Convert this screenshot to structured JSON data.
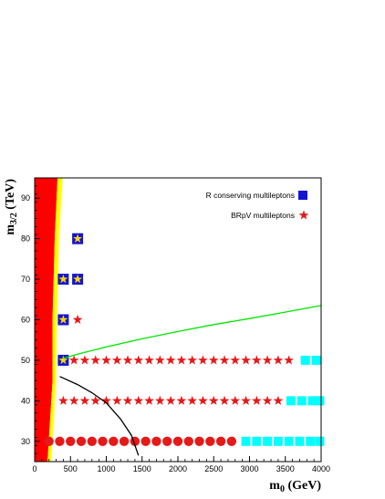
{
  "chart_data": {
    "type": "scatter",
    "xlim": [
      0,
      4000
    ],
    "ylim": [
      25,
      95
    ],
    "x_ticks": [
      0,
      500,
      1000,
      1500,
      2000,
      2500,
      3000,
      3500,
      4000
    ],
    "y_ticks": [
      30,
      40,
      50,
      60,
      70,
      80,
      90
    ],
    "x_tick_labels": [
      "0",
      "500",
      "1000",
      "1500",
      "2000",
      "2500",
      "3000",
      "3500",
      "4000"
    ],
    "y_tick_labels": [
      "30",
      "40",
      "50",
      "60",
      "70",
      "80",
      "90"
    ],
    "xlabel": {
      "main": "m",
      "sub": "0",
      "unit": " (GeV)"
    },
    "ylabel": {
      "main": "m",
      "sub": "3/2",
      "unit": " (TeV)"
    },
    "legend": {
      "placement": "top-right",
      "entries": [
        {
          "label": "R conserving multileptons",
          "marker": "square",
          "color": "#1414d2"
        },
        {
          "label": "BRpV multileptons",
          "marker": "star",
          "color": "#e61919"
        }
      ]
    },
    "colors": {
      "excluded_region": "#ff0000",
      "boundary_band": "#ffff00",
      "green_curve": "#00e600",
      "black_curve": "#000000",
      "red_marker": "#e61919",
      "cyan_marker": "#00ffff",
      "blue_square": "#1414d2",
      "yellow_star": "#ffd700"
    },
    "red_region": [
      [
        0,
        25
      ],
      [
        180,
        25
      ],
      [
        250,
        45
      ],
      [
        250,
        60
      ],
      [
        280,
        80
      ],
      [
        320,
        95
      ],
      [
        0,
        95
      ]
    ],
    "yellow_band": [
      [
        180,
        25
      ],
      [
        230,
        25
      ],
      [
        300,
        45
      ],
      [
        310,
        60
      ],
      [
        340,
        80
      ],
      [
        390,
        95
      ],
      [
        320,
        95
      ],
      [
        280,
        80
      ],
      [
        250,
        60
      ],
      [
        250,
        45
      ]
    ],
    "green_curve": [
      [
        400,
        50.5
      ],
      [
        600,
        51.5
      ],
      [
        1000,
        53.3
      ],
      [
        1500,
        55.3
      ],
      [
        2000,
        57.1
      ],
      [
        2500,
        58.8
      ],
      [
        3000,
        60.3
      ],
      [
        3500,
        61.9
      ],
      [
        4000,
        63.5
      ]
    ],
    "black_curve": [
      [
        350,
        46
      ],
      [
        600,
        44
      ],
      [
        800,
        42
      ],
      [
        1000,
        39.5
      ],
      [
        1200,
        35.5
      ],
      [
        1350,
        31.5
      ],
      [
        1450,
        26.5
      ]
    ],
    "series": [
      {
        "marker": "circle",
        "color": "#e61919",
        "points": [
          [
            200,
            30
          ],
          [
            350,
            30
          ],
          [
            500,
            30
          ],
          [
            650,
            30
          ],
          [
            800,
            30
          ],
          [
            950,
            30
          ],
          [
            1100,
            30
          ],
          [
            1250,
            30
          ],
          [
            1400,
            30
          ],
          [
            1550,
            30
          ],
          [
            1700,
            30
          ],
          [
            1850,
            30
          ],
          [
            2000,
            30
          ],
          [
            2150,
            30
          ],
          [
            2300,
            30
          ],
          [
            2450,
            30
          ],
          [
            2600,
            30
          ],
          [
            2750,
            30
          ]
        ]
      },
      {
        "marker": "square",
        "color": "#00ffff",
        "points": [
          [
            2950,
            30
          ],
          [
            3100,
            30
          ],
          [
            3250,
            30
          ],
          [
            3400,
            30
          ],
          [
            3550,
            30
          ],
          [
            3700,
            30
          ],
          [
            3850,
            30
          ],
          [
            3980,
            30
          ],
          [
            3580,
            40
          ],
          [
            3730,
            40
          ],
          [
            3880,
            40
          ],
          [
            3980,
            40
          ],
          [
            3780,
            50
          ],
          [
            3930,
            50
          ]
        ]
      },
      {
        "marker": "star",
        "color": "#e61919",
        "points": [
          [
            400,
            40
          ],
          [
            550,
            40
          ],
          [
            700,
            40
          ],
          [
            850,
            40
          ],
          [
            1000,
            40
          ],
          [
            1150,
            40
          ],
          [
            1300,
            40
          ],
          [
            1450,
            40
          ],
          [
            1600,
            40
          ],
          [
            1750,
            40
          ],
          [
            1900,
            40
          ],
          [
            2050,
            40
          ],
          [
            2200,
            40
          ],
          [
            2350,
            40
          ],
          [
            2500,
            40
          ],
          [
            2650,
            40
          ],
          [
            2800,
            40
          ],
          [
            2950,
            40
          ],
          [
            3100,
            40
          ],
          [
            3250,
            40
          ],
          [
            3400,
            40
          ],
          [
            550,
            50
          ],
          [
            700,
            50
          ],
          [
            850,
            50
          ],
          [
            1000,
            50
          ],
          [
            1150,
            50
          ],
          [
            1300,
            50
          ],
          [
            1450,
            50
          ],
          [
            1600,
            50
          ],
          [
            1750,
            50
          ],
          [
            1900,
            50
          ],
          [
            2050,
            50
          ],
          [
            2200,
            50
          ],
          [
            2350,
            50
          ],
          [
            2500,
            50
          ],
          [
            2650,
            50
          ],
          [
            2800,
            50
          ],
          [
            2950,
            50
          ],
          [
            3100,
            50
          ],
          [
            3250,
            50
          ],
          [
            3400,
            50
          ],
          [
            3550,
            50
          ],
          [
            600,
            60
          ]
        ]
      },
      {
        "marker": "square-star",
        "color": "#1414d2",
        "points": [
          [
            400,
            50
          ],
          [
            400,
            60
          ],
          [
            400,
            70
          ],
          [
            600,
            70
          ],
          [
            600,
            80
          ]
        ]
      }
    ]
  }
}
